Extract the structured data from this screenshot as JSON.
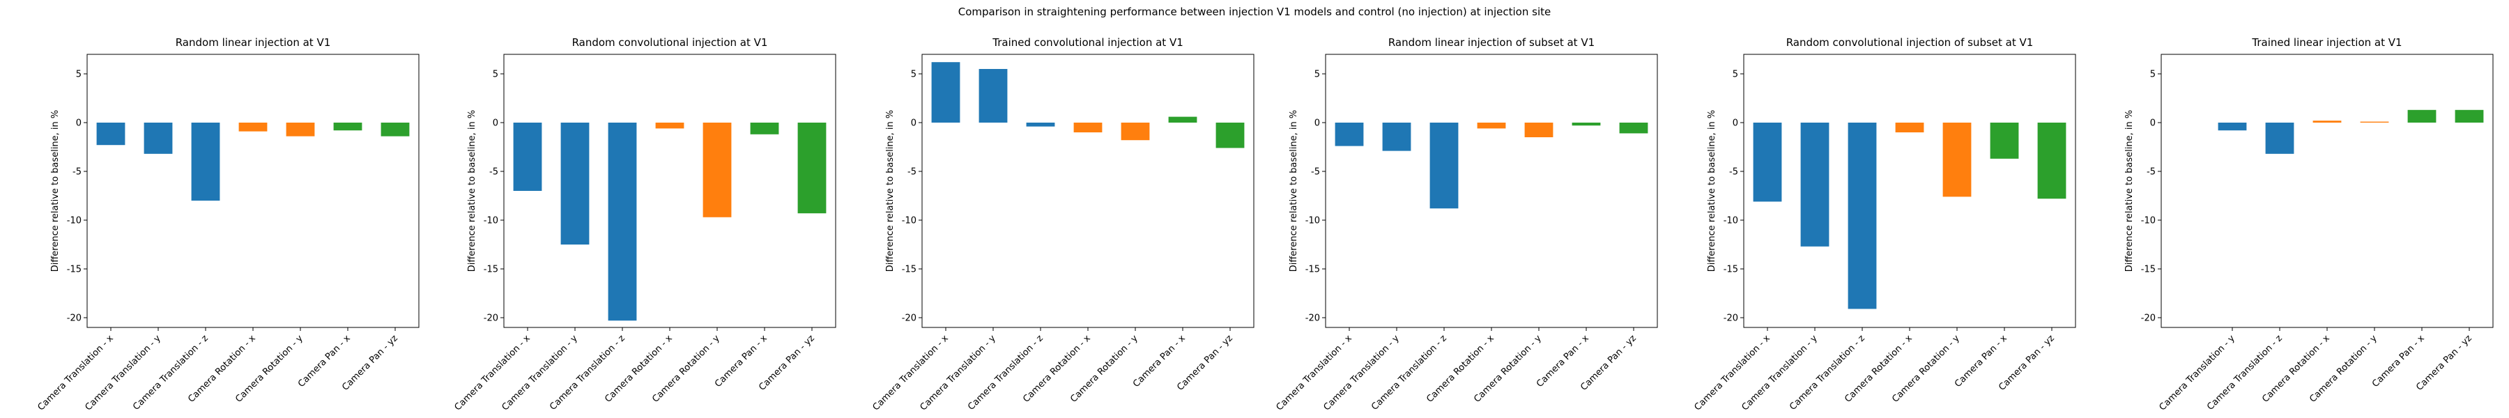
{
  "figure_title": "Comparison in straightening performance between injection V1 models and control (no injection) at injection site",
  "colors": {
    "translation": "#1f77b4",
    "rotation": "#ff7f0e",
    "pan": "#2ca02c"
  },
  "chart_data": [
    {
      "type": "bar",
      "title": "Random linear injection at V1",
      "ylabel": "Difference relative to baseline, in %",
      "ylim": [
        -21,
        7
      ],
      "yticks": [
        -20,
        -15,
        -10,
        -5,
        0,
        5
      ],
      "categories": [
        "Camera Translation - x",
        "Camera Translation - y",
        "Camera Translation - z",
        "Camera Rotation - x",
        "Camera Rotation - y",
        "Camera Pan - x",
        "Camera Pan - yz"
      ],
      "groups": [
        "translation",
        "translation",
        "translation",
        "rotation",
        "rotation",
        "pan",
        "pan"
      ],
      "values": [
        -2.3,
        -3.2,
        -8.0,
        -0.9,
        -1.4,
        -0.8,
        -1.4
      ]
    },
    {
      "type": "bar",
      "title": "Random convolutional injection at V1",
      "ylabel": "Difference relative to baseline, in %",
      "ylim": [
        -21,
        7
      ],
      "yticks": [
        -20,
        -15,
        -10,
        -5,
        0,
        5
      ],
      "categories": [
        "Camera Translation - x",
        "Camera Translation - y",
        "Camera Translation - z",
        "Camera Rotation - x",
        "Camera Rotation - y",
        "Camera Pan - x",
        "Camera Pan - yz"
      ],
      "groups": [
        "translation",
        "translation",
        "translation",
        "rotation",
        "rotation",
        "pan",
        "pan"
      ],
      "values": [
        -7.0,
        -12.5,
        -20.3,
        -0.6,
        -9.7,
        -1.2,
        -9.3
      ]
    },
    {
      "type": "bar",
      "title": "Trained convolutional injection at V1",
      "ylabel": "Difference relative to baseline, in %",
      "ylim": [
        -21,
        7
      ],
      "yticks": [
        -20,
        -15,
        -10,
        -5,
        0,
        5
      ],
      "categories": [
        "Camera Translation - x",
        "Camera Translation - y",
        "Camera Translation - z",
        "Camera Rotation - x",
        "Camera Rotation - y",
        "Camera Pan - x",
        "Camera Pan - yz"
      ],
      "groups": [
        "translation",
        "translation",
        "translation",
        "rotation",
        "rotation",
        "pan",
        "pan"
      ],
      "values": [
        6.2,
        5.5,
        -0.4,
        -1.0,
        -1.8,
        0.6,
        -2.6
      ]
    },
    {
      "type": "bar",
      "title": "Random linear injection of subset at V1",
      "ylabel": "Difference relative to baseline, in %",
      "ylim": [
        -21,
        7
      ],
      "yticks": [
        -20,
        -15,
        -10,
        -5,
        0,
        5
      ],
      "categories": [
        "Camera Translation - x",
        "Camera Translation - y",
        "Camera Translation - z",
        "Camera Rotation - x",
        "Camera Rotation - y",
        "Camera Pan - x",
        "Camera Pan - yz"
      ],
      "groups": [
        "translation",
        "translation",
        "translation",
        "rotation",
        "rotation",
        "pan",
        "pan"
      ],
      "values": [
        -2.4,
        -2.9,
        -8.8,
        -0.6,
        -1.5,
        -0.3,
        -1.1
      ]
    },
    {
      "type": "bar",
      "title": "Random convolutional injection of subset at V1",
      "ylabel": "Difference relative to baseline, in %",
      "ylim": [
        -21,
        7
      ],
      "yticks": [
        -20,
        -15,
        -10,
        -5,
        0,
        5
      ],
      "categories": [
        "Camera Translation - x",
        "Camera Translation - y",
        "Camera Translation - z",
        "Camera Rotation - x",
        "Camera Rotation - y",
        "Camera Pan - x",
        "Camera Pan - yz"
      ],
      "groups": [
        "translation",
        "translation",
        "translation",
        "rotation",
        "rotation",
        "pan",
        "pan"
      ],
      "values": [
        -8.1,
        -12.7,
        -19.1,
        -1.0,
        -7.6,
        -3.7,
        -7.8
      ]
    },
    {
      "type": "bar",
      "title": "Trained linear injection at V1",
      "ylabel": "Difference relative to baseline, in %",
      "ylim": [
        -21,
        7
      ],
      "yticks": [
        -20,
        -15,
        -10,
        -5,
        0,
        5
      ],
      "categories": [
        "Camera Translation - y",
        "Camera Translation - z",
        "Camera Rotation - x",
        "Camera Rotation - y",
        "Camera Pan - x",
        "Camera Pan - yz"
      ],
      "groups": [
        "translation",
        "translation",
        "rotation",
        "rotation",
        "pan",
        "pan"
      ],
      "slots": [
        1,
        2,
        3,
        4,
        5,
        6
      ],
      "values": [
        -0.8,
        -3.2,
        0.2,
        0.1,
        1.3,
        1.3
      ]
    }
  ]
}
